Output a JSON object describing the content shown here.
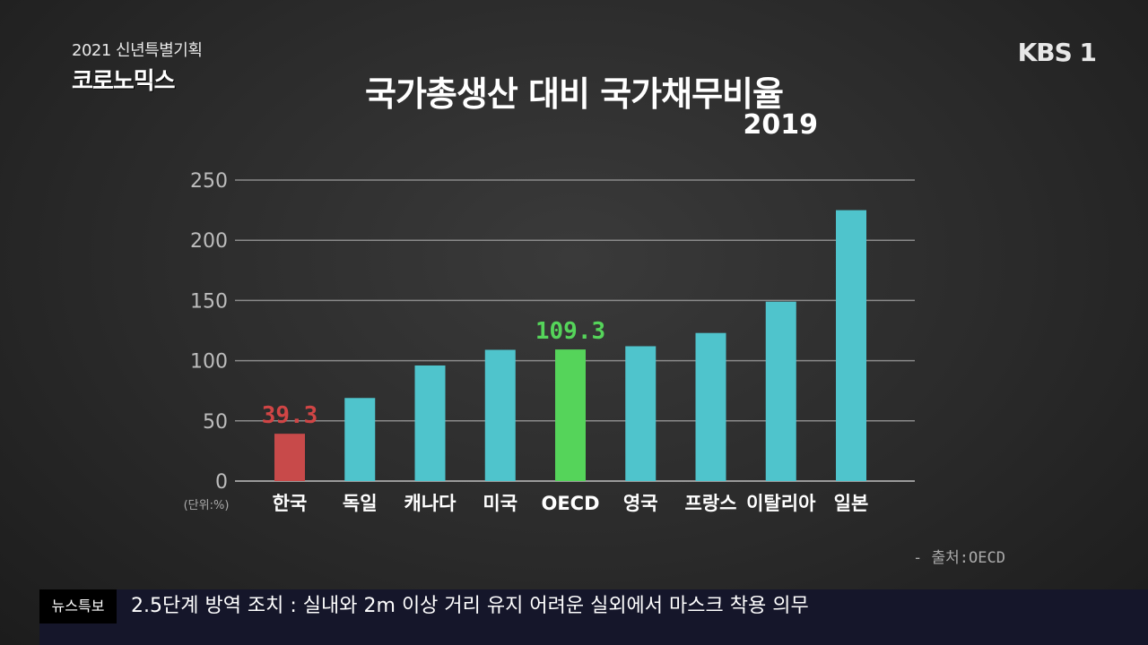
{
  "program": {
    "subtitle": "2021 신년특별기획",
    "name": "코로노믹스"
  },
  "channel_logo": "KBS 1",
  "chart_data": {
    "type": "bar",
    "title": "국가총생산 대비 국가채무비율",
    "subtitle": "2019",
    "ylabel": "(단위:%)",
    "ylim": [
      0,
      250
    ],
    "yticks": [
      0,
      50,
      100,
      150,
      200,
      250
    ],
    "grid": true,
    "categories": [
      "한국",
      "독일",
      "캐나다",
      "미국",
      "OECD",
      "영국",
      "프랑스",
      "이탈리아",
      "일본"
    ],
    "values": [
      39.3,
      69,
      96,
      109,
      109.3,
      112,
      123,
      149,
      225
    ],
    "bar_colors": [
      "#c84a4a",
      "#4fc4cc",
      "#4fc4cc",
      "#4fc4cc",
      "#55d45a",
      "#4fc4cc",
      "#4fc4cc",
      "#4fc4cc",
      "#4fc4cc"
    ],
    "data_labels": [
      {
        "category": "한국",
        "text": "39.3",
        "color": "#d04545"
      },
      {
        "category": "OECD",
        "text": "109.3",
        "color": "#55d45a"
      }
    ],
    "source": "- 출처:OECD"
  },
  "ticker": {
    "tag": "뉴스특보",
    "text": "2.5단계 방역 조치 : 실내와 2m 이상 거리 유지 어려운 실외에서 마스크 착용 의무"
  }
}
